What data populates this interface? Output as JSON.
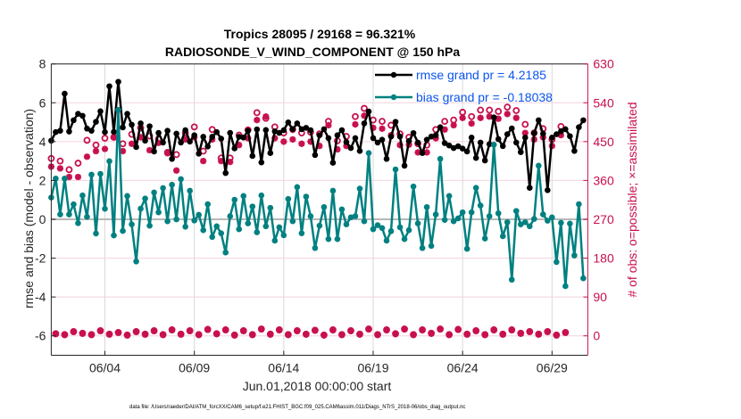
{
  "chart_data": {
    "type": "line",
    "title": "Tropics 28095 / 29168 = 96.321%",
    "subtitle": "RADIOSONDE_V_WIND_COMPONENT @ 150 hPa",
    "xlabel": "Jun.01,2018 00:00:00 start",
    "ylabel": "rmse and bias (model - observation)",
    "ylabel_right": "# of obs: o=possible; ×=assimilated",
    "footer": "data file: /Users/raeder/DAI/ATM_forcXX/CAM6_setup/f.e21.FHIST_BGC.f09_025.CAM6assim.011/Diags_NTrS_2018-06/obs_diag_output.nc",
    "x_unit": "days since Jun.01,2018 00:00:00",
    "xlim": [
      0,
      30
    ],
    "x_ticks": [
      3,
      8,
      13,
      18,
      23,
      28
    ],
    "x_tick_labels": [
      "06/04",
      "06/09",
      "06/14",
      "06/19",
      "06/24",
      "06/29"
    ],
    "ylim": [
      -7,
      8
    ],
    "y_ticks": [
      -6,
      -4,
      -2,
      0,
      2,
      4,
      6,
      8
    ],
    "y_tick_labels": [
      "-6",
      "-4",
      "-2",
      "0",
      "2",
      "4",
      "6",
      "8"
    ],
    "ylim_right": [
      -45,
      630
    ],
    "y_ticks_right": [
      0,
      90,
      180,
      270,
      360,
      450,
      540,
      630
    ],
    "y_tick_labels_right": [
      "0",
      "90",
      "180",
      "270",
      "360",
      "450",
      "540",
      "630"
    ],
    "grid": true,
    "zero_line": true,
    "legend_position": "top-right",
    "x_start": 0.0,
    "x_step": 0.25,
    "series": [
      {
        "name": "rmse grand pr = 4.2185",
        "color": "#000000",
        "axis": "left",
        "values": [
          4.05,
          4.49,
          4.56,
          6.47,
          4.52,
          5.1,
          5.43,
          5.33,
          4.67,
          4.56,
          5.02,
          5.56,
          4.49,
          6.85,
          4.5,
          7.08,
          4.73,
          5.43,
          4.87,
          3.72,
          4.94,
          4.05,
          4.79,
          3.49,
          4.45,
          3.95,
          4.56,
          3.11,
          4.41,
          3.95,
          4.59,
          4.0,
          4.33,
          3.38,
          4.25,
          3.75,
          4.25,
          4.49,
          4.15,
          2.38,
          4.45,
          3.65,
          4.25,
          4.21,
          4.56,
          3.26,
          4.63,
          2.93,
          4.6,
          3.41,
          4.53,
          4.45,
          4.59,
          4.99,
          4.64,
          4.94,
          4.64,
          4.71,
          4.59,
          3.31,
          4.33,
          4.64,
          4.18,
          2.91,
          4.33,
          4.59,
          3.98,
          3.67,
          4.18,
          3.52,
          4.94,
          5.55,
          4.18,
          3.95,
          4.1,
          3.11,
          4.26,
          5.02,
          4.26,
          2.76,
          4.03,
          4.44,
          3.95,
          3.41,
          4.1,
          4.26,
          4.33,
          4.74,
          3.92,
          3.8,
          3.67,
          3.76,
          3.64,
          3.49,
          4.21,
          3.16,
          3.95,
          3.03,
          3.87,
          5.25,
          4.13,
          3.77,
          4.38,
          4.68,
          3.95,
          3.46,
          4.21,
          1.62,
          4.44,
          5.1,
          4.41,
          1.5,
          4.21,
          4.38,
          4.53,
          4.64,
          4.28,
          3.52,
          4.74,
          5.1
        ]
      },
      {
        "name": "bias grand pr = -0.18038",
        "color": "#008080",
        "axis": "left",
        "values": [
          1.12,
          2.1,
          0.25,
          2.1,
          0.25,
          0.77,
          -0.2,
          1.23,
          0.13,
          2.3,
          -0.73,
          2.34,
          0.54,
          2.99,
          -0.83,
          5.63,
          -0.6,
          1.2,
          -0.26,
          -2.17,
          0.55,
          1.07,
          -0.33,
          1.38,
          0.36,
          1.61,
          -0.1,
          1.78,
          0.0,
          2.07,
          -0.38,
          1.47,
          -0.06,
          0.23,
          -0.56,
          0.78,
          -0.91,
          -0.36,
          -0.72,
          -1.71,
          0.16,
          1.01,
          -0.51,
          1.2,
          -0.21,
          0.66,
          -0.67,
          1.23,
          -0.36,
          0.59,
          -1.1,
          -0.41,
          -0.82,
          1.05,
          -0.1,
          1.66,
          -0.72,
          1.17,
          0.16,
          -1.48,
          -0.33,
          0.63,
          -1.02,
          1.47,
          -1.02,
          0.51,
          -0.26,
          0.1,
          0.16,
          1.58,
          -0.1,
          3.41,
          -0.51,
          -0.3,
          -0.45,
          -1.1,
          -0.61,
          2.57,
          -0.41,
          -1.02,
          -0.56,
          1.69,
          -0.21,
          -1.48,
          0.63,
          -1.37,
          0.25,
          3.11,
          -0.03,
          1.2,
          -0.1,
          0.05,
          0.36,
          -1.52,
          0.36,
          1.62,
          0.71,
          -0.99,
          0.16,
          3.84,
          0.31,
          -0.87,
          -0.15,
          -3.11,
          0.43,
          -0.26,
          -0.15,
          -0.36,
          0.02,
          2.76,
          0.25,
          -0.07,
          0.1,
          -2.2,
          -0.18,
          -3.44,
          -0.22,
          -1.86,
          0.78,
          -3.04
        ]
      },
      {
        "name": "possible obs (o)",
        "color": "#c8104f",
        "axis": "right",
        "marker": "o",
        "values": [
          411,
          5,
          405,
          3,
          385,
          10,
          400,
          6,
          453,
          3,
          442,
          12,
          458,
          4,
          460,
          8,
          445,
          2,
          467,
          10,
          482,
          4,
          463,
          12,
          456,
          3,
          425,
          14,
          420,
          4,
          470,
          12,
          484,
          3,
          428,
          15,
          478,
          5,
          412,
          14,
          412,
          2,
          465,
          12,
          477,
          3,
          517,
          16,
          504,
          4,
          484,
          14,
          470,
          3,
          478,
          12,
          470,
          4,
          472,
          13,
          468,
          2,
          497,
          14,
          452,
          3,
          462,
          12,
          508,
          4,
          527,
          16,
          500,
          3,
          497,
          14,
          488,
          5,
          468,
          16,
          460,
          3,
          445,
          14,
          442,
          6,
          478,
          16,
          497,
          3,
          500,
          15,
          518,
          4,
          508,
          12,
          523,
          3,
          523,
          14,
          520,
          4,
          530,
          14,
          522,
          6,
          490,
          10,
          470,
          4,
          480,
          10,
          455,
          2,
          485,
          8
        ]
      },
      {
        "name": "assimilated obs (×)",
        "color": "#c8104f",
        "axis": "right",
        "marker": "*",
        "values": [
          392,
          4,
          388,
          2,
          368,
          9,
          368,
          5,
          415,
          2,
          428,
          11,
          433,
          3,
          460,
          7,
          428,
          1,
          445,
          9,
          460,
          3,
          430,
          11,
          447,
          2,
          423,
          13,
          383,
          3,
          455,
          11,
          460,
          2,
          405,
          14,
          455,
          4,
          405,
          13,
          403,
          1,
          442,
          11,
          458,
          2,
          500,
          15,
          508,
          3,
          458,
          13,
          450,
          2,
          455,
          11,
          445,
          3,
          450,
          12,
          440,
          1,
          488,
          13,
          432,
          2,
          440,
          11,
          490,
          3,
          510,
          15,
          482,
          2,
          480,
          13,
          465,
          4,
          442,
          15,
          443,
          2,
          425,
          13,
          425,
          5,
          458,
          15,
          478,
          2,
          488,
          14,
          505,
          3,
          492,
          11,
          505,
          2,
          508,
          13,
          503,
          3,
          514,
          13,
          505,
          5,
          470,
          9,
          455,
          3,
          460,
          9,
          440,
          1,
          465,
          7
        ]
      }
    ]
  }
}
